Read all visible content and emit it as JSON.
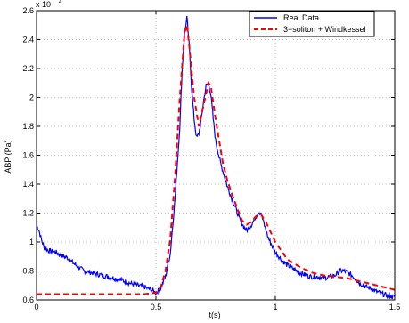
{
  "chart_data": {
    "type": "line",
    "title": "",
    "xlabel": "t(s)",
    "ylabel": "ABP (Pa)",
    "xlim": [
      0,
      1.5
    ],
    "ylim": [
      0.6,
      2.6
    ],
    "y_multiplier_label": "x 10",
    "y_multiplier_exponent": "4",
    "x_ticks": [
      0,
      0.5,
      1,
      1.5
    ],
    "x_tick_labels": [
      "0",
      "0.5",
      "1",
      "1.5"
    ],
    "y_ticks": [
      0.6,
      0.8,
      1.0,
      1.2,
      1.4,
      1.6,
      1.8,
      2.0,
      2.2,
      2.4,
      2.6
    ],
    "y_tick_labels": [
      "0.6",
      "0.8",
      "1",
      "1.2",
      "1.4",
      "1.6",
      "1.8",
      "2",
      "2.2",
      "2.4",
      "2.6"
    ],
    "grid": true,
    "legend_position": "top-right",
    "series": [
      {
        "name": "Real Data",
        "color": "#0000ff",
        "style": "solid",
        "x": [
          0.0,
          0.01,
          0.02,
          0.03,
          0.05,
          0.08,
          0.1,
          0.13,
          0.15,
          0.18,
          0.2,
          0.25,
          0.3,
          0.35,
          0.4,
          0.45,
          0.48,
          0.5,
          0.52,
          0.54,
          0.56,
          0.58,
          0.6,
          0.61,
          0.62,
          0.63,
          0.64,
          0.65,
          0.66,
          0.67,
          0.68,
          0.69,
          0.7,
          0.71,
          0.72,
          0.73,
          0.74,
          0.75,
          0.77,
          0.8,
          0.83,
          0.85,
          0.87,
          0.88,
          0.9,
          0.92,
          0.93,
          0.94,
          0.95,
          0.97,
          1.0,
          1.03,
          1.05,
          1.08,
          1.1,
          1.13,
          1.15,
          1.18,
          1.2,
          1.23,
          1.25,
          1.27,
          1.29,
          1.3,
          1.32,
          1.35,
          1.38,
          1.4,
          1.42,
          1.45,
          1.47,
          1.5
        ],
        "y": [
          1.12,
          1.08,
          1.02,
          0.97,
          0.94,
          0.93,
          0.91,
          0.89,
          0.86,
          0.82,
          0.8,
          0.78,
          0.76,
          0.74,
          0.71,
          0.69,
          0.67,
          0.65,
          0.68,
          0.76,
          0.92,
          1.3,
          1.8,
          2.2,
          2.45,
          2.55,
          2.35,
          2.05,
          1.85,
          1.72,
          1.75,
          1.85,
          1.98,
          2.08,
          2.1,
          2.02,
          1.85,
          1.7,
          1.55,
          1.38,
          1.25,
          1.16,
          1.1,
          1.08,
          1.12,
          1.18,
          1.21,
          1.2,
          1.14,
          1.03,
          0.93,
          0.87,
          0.84,
          0.81,
          0.79,
          0.77,
          0.76,
          0.76,
          0.75,
          0.76,
          0.77,
          0.8,
          0.8,
          0.79,
          0.77,
          0.72,
          0.69,
          0.68,
          0.66,
          0.64,
          0.63,
          0.62
        ]
      },
      {
        "name": "3−soliton + Windkessel",
        "color": "#ff0000",
        "style": "dashed",
        "x": [
          0.0,
          0.1,
          0.2,
          0.3,
          0.4,
          0.45,
          0.5,
          0.52,
          0.54,
          0.56,
          0.58,
          0.6,
          0.62,
          0.63,
          0.64,
          0.66,
          0.68,
          0.7,
          0.72,
          0.73,
          0.75,
          0.78,
          0.8,
          0.83,
          0.86,
          0.88,
          0.9,
          0.92,
          0.94,
          0.96,
          1.0,
          1.05,
          1.1,
          1.15,
          1.2,
          1.25,
          1.3,
          1.35,
          1.4,
          1.45,
          1.5
        ],
        "y": [
          0.64,
          0.64,
          0.64,
          0.64,
          0.64,
          0.64,
          0.65,
          0.69,
          0.8,
          1.02,
          1.45,
          2.0,
          2.45,
          2.5,
          2.35,
          2.0,
          1.8,
          1.95,
          2.1,
          2.08,
          1.85,
          1.55,
          1.42,
          1.28,
          1.15,
          1.12,
          1.14,
          1.18,
          1.19,
          1.14,
          1.0,
          0.88,
          0.83,
          0.79,
          0.77,
          0.76,
          0.75,
          0.73,
          0.71,
          0.69,
          0.67
        ]
      }
    ]
  }
}
